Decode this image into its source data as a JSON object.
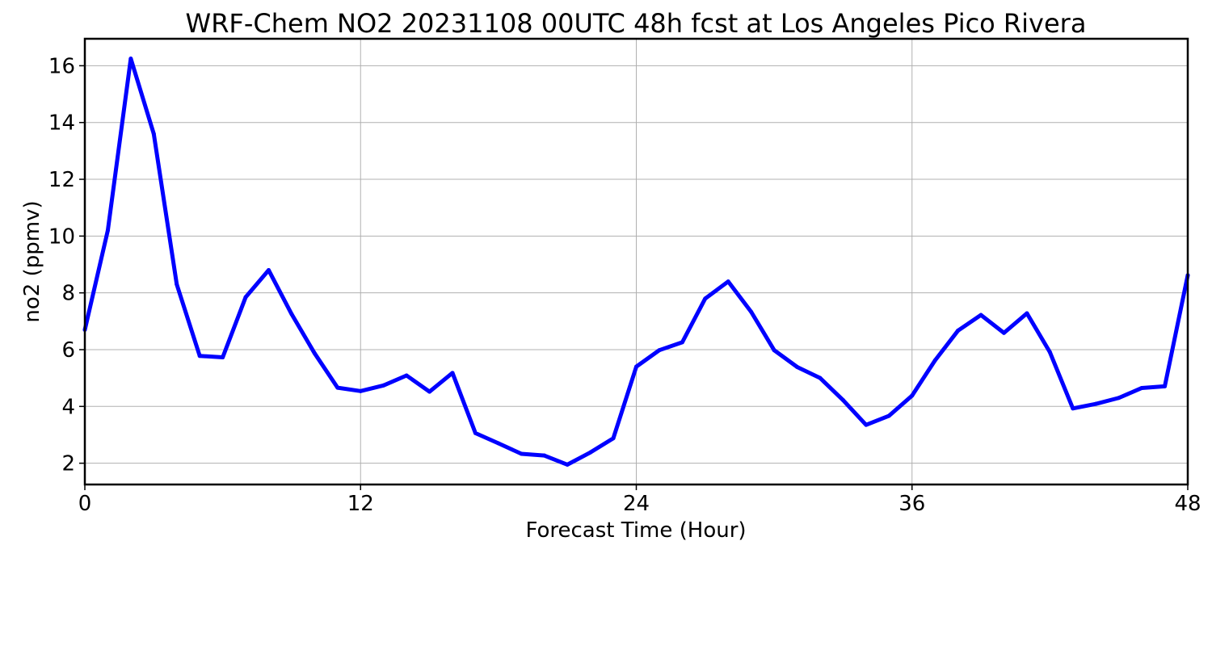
{
  "chart_data": {
    "type": "line",
    "title": "WRF-Chem NO2  20231108 00UTC 48h fcst at Los Angeles Pico Rivera",
    "xlabel": "Forecast Time (Hour)",
    "ylabel": "no2  (ppmv)",
    "xlim": [
      0,
      48
    ],
    "ylim": [
      1.25,
      16.95
    ],
    "xticks": [
      0,
      12,
      24,
      36,
      48
    ],
    "yticks": [
      2,
      4,
      6,
      8,
      10,
      12,
      14,
      16
    ],
    "grid": true,
    "series": [
      {
        "color": "#0000ff",
        "x": [
          0,
          1,
          2,
          3,
          4,
          5,
          6,
          7,
          8,
          9,
          10,
          11,
          12,
          13,
          14,
          15,
          16,
          17,
          18,
          19,
          20,
          21,
          22,
          23,
          24,
          25,
          26,
          27,
          28,
          29,
          30,
          31,
          32,
          33,
          34,
          35,
          36,
          37,
          38,
          39,
          40,
          41,
          42,
          43,
          44,
          45,
          46,
          47,
          48
        ],
        "values": [
          6.7,
          10.2,
          16.25,
          13.6,
          8.3,
          5.78,
          5.73,
          7.85,
          8.8,
          7.25,
          5.87,
          4.66,
          4.54,
          4.74,
          5.09,
          4.52,
          5.18,
          3.06,
          2.7,
          2.33,
          2.27,
          1.95,
          2.38,
          2.88,
          5.4,
          5.98,
          6.26,
          7.8,
          8.4,
          7.33,
          5.98,
          5.39,
          5.0,
          4.22,
          3.35,
          3.67,
          4.38,
          5.62,
          6.67,
          7.22,
          6.59,
          7.28,
          5.91,
          3.93,
          4.09,
          4.3,
          4.65,
          4.71,
          8.62
        ]
      }
    ]
  }
}
